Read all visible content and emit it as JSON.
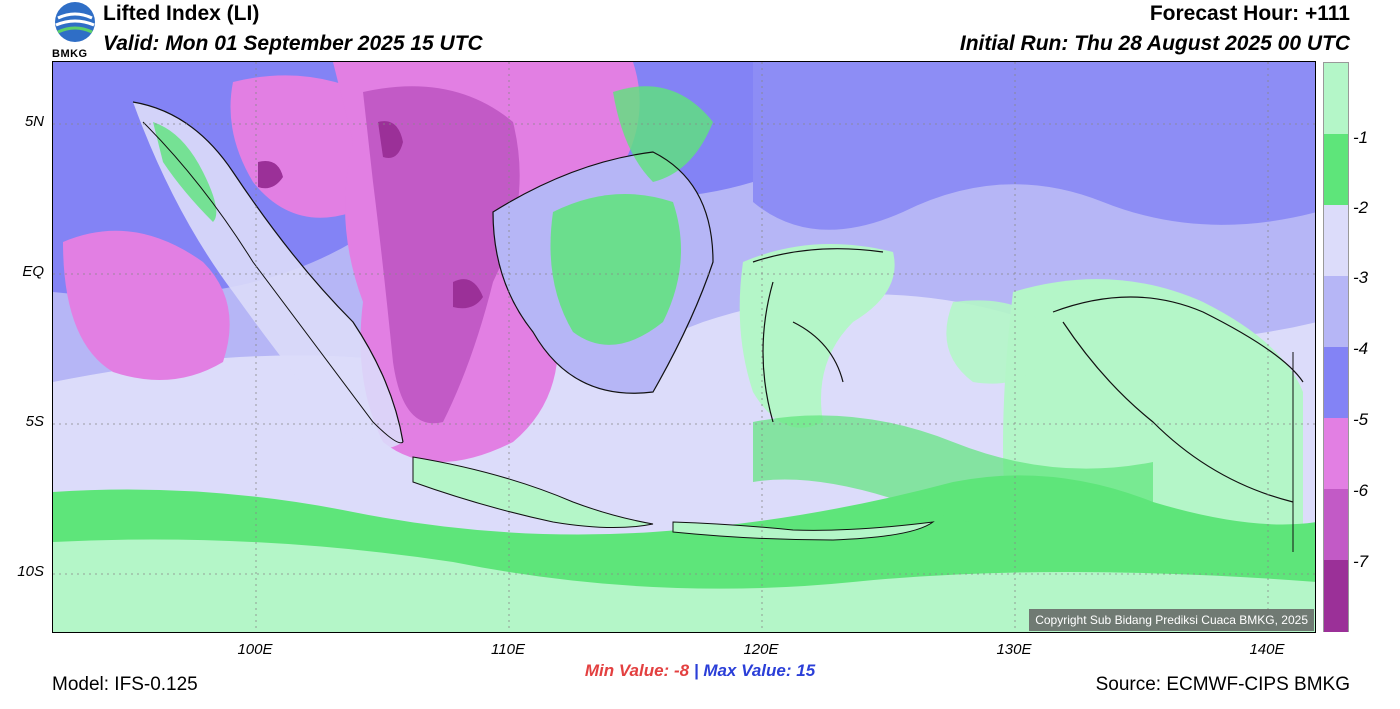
{
  "header": {
    "title": "Lifted Index (LI)",
    "valid": "Valid: Mon 01 September 2025 15 UTC",
    "forecast_hour": "Forecast Hour: +111",
    "initial_run": "Initial Run: Thu 28 August 2025 00 UTC",
    "logo_text": "BMKG"
  },
  "axes": {
    "lat_labels": [
      "5N",
      "EQ",
      "5S",
      "10S"
    ],
    "lon_labels": [
      "100E",
      "110E",
      "120E",
      "130E",
      "140E"
    ]
  },
  "colorbar": {
    "labels": [
      "-1",
      "-2",
      "-3",
      "-4",
      "-5",
      "-6",
      "-7"
    ],
    "colors": [
      "#b4f6c8",
      "#5ee57a",
      "#dcdcfa",
      "#b6b6f6",
      "#8383f5",
      "#e27fe3",
      "#c25ac6",
      "#9b3098"
    ]
  },
  "map": {
    "copyright": "Copyright Sub Bidang Prediksi Cuaca BMKG, 2025"
  },
  "stats": {
    "min_label": "Min Value:",
    "min_value": "-8",
    "separator": "|",
    "max_label": "Max Value:",
    "max_value": "15"
  },
  "footer": {
    "model": "Model: IFS-0.125",
    "source": "Source: ECMWF-CIPS BMKG"
  }
}
